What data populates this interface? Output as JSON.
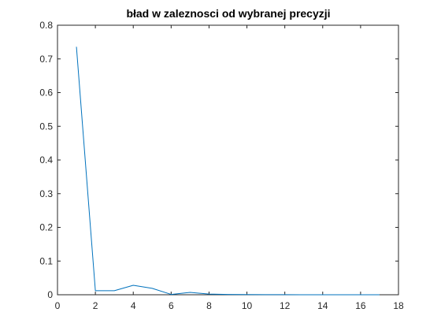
{
  "chart_data": {
    "type": "line",
    "title": "bład w zaleznosci od wybranej precyzji",
    "xlabel": "",
    "ylabel": "",
    "xlim": [
      0,
      18
    ],
    "ylim": [
      0,
      0.8
    ],
    "x_ticks": [
      0,
      2,
      4,
      6,
      8,
      10,
      12,
      14,
      16,
      18
    ],
    "y_ticks": [
      0,
      0.1,
      0.2,
      0.3,
      0.4,
      0.5,
      0.6,
      0.7,
      0.8
    ],
    "x_tick_labels": [
      "0",
      "2",
      "4",
      "6",
      "8",
      "10",
      "12",
      "14",
      "16",
      "18"
    ],
    "y_tick_labels": [
      "0",
      "0.1",
      "0.2",
      "0.3",
      "0.4",
      "0.5",
      "0.6",
      "0.7",
      "0.8"
    ],
    "grid": false,
    "series": [
      {
        "color": "#0072BD",
        "x": [
          1,
          2,
          3,
          4,
          5,
          6,
          7,
          8,
          9,
          10,
          11,
          12,
          13,
          14,
          15,
          16,
          17
        ],
        "y": [
          0.736,
          0.012,
          0.012,
          0.028,
          0.019,
          0.001,
          0.007,
          0.002,
          0.001,
          0.0005,
          0.0003,
          0.0002,
          0.0001,
          0.0001,
          0.0001,
          0.0001,
          0.0001
        ]
      }
    ]
  }
}
